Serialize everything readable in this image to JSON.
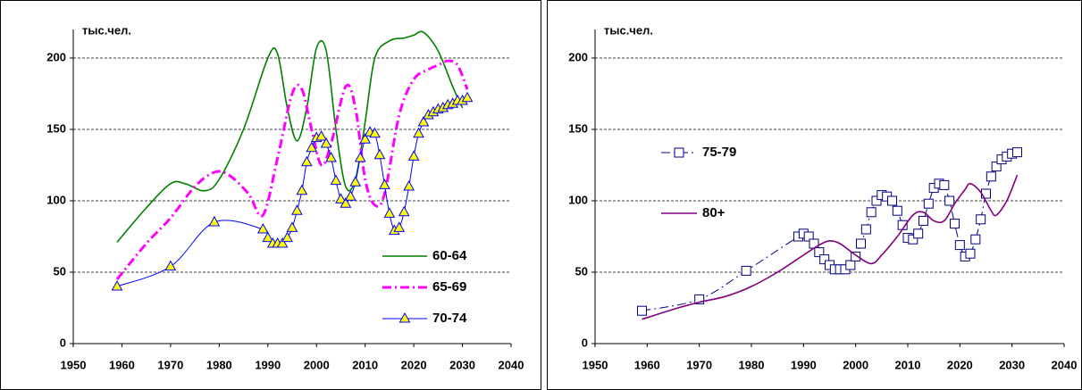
{
  "chart_data": [
    {
      "type": "line",
      "ylabel": "тыс.чел.",
      "xlim": [
        1950,
        2040
      ],
      "ylim": [
        0,
        220
      ],
      "xticks": [
        1950,
        1960,
        1970,
        1980,
        1990,
        2000,
        2010,
        2020,
        2030,
        2040
      ],
      "yticks": [
        0,
        50,
        100,
        150,
        200
      ],
      "grid": true,
      "legend_position": "lower right",
      "series": [
        {
          "name": "60-64",
          "color": "#008000",
          "style": "solid",
          "marker": "none",
          "x": [
            1959,
            1965,
            1970,
            1973,
            1977,
            1980,
            1985,
            1990,
            1992,
            1994,
            1996,
            1998,
            2000,
            2002,
            2004,
            2006,
            2008,
            2010,
            2012,
            2015,
            2018,
            2020,
            2022,
            2025,
            2028,
            2030
          ],
          "values": [
            71,
            95,
            112,
            112,
            107,
            115,
            150,
            200,
            203,
            165,
            142,
            165,
            207,
            205,
            150,
            110,
            115,
            155,
            200,
            212,
            214,
            216,
            218,
            205,
            180,
            165
          ]
        },
        {
          "name": "65-69",
          "color": "#ff00ff",
          "style": "dashdot",
          "marker": "none",
          "x": [
            1959,
            1965,
            1970,
            1975,
            1979,
            1982,
            1986,
            1989,
            1992,
            1995,
            1997,
            1999,
            2001,
            2003,
            2006,
            2008,
            2010,
            2012,
            2014,
            2017,
            2020,
            2023,
            2025,
            2027,
            2029,
            2031
          ],
          "values": [
            45,
            70,
            88,
            110,
            120,
            118,
            105,
            90,
            130,
            175,
            178,
            150,
            125,
            140,
            180,
            165,
            115,
            97,
            105,
            160,
            185,
            192,
            195,
            198,
            195,
            178
          ]
        },
        {
          "name": "70-74",
          "color": "#0000ff",
          "style": "solid",
          "marker": "triangle",
          "x": [
            1959,
            1970,
            1979,
            1989,
            1990,
            1991,
            1992,
            1993,
            1994,
            1995,
            1996,
            1997,
            1998,
            1999,
            2000,
            2001,
            2002,
            2003,
            2004,
            2005,
            2006,
            2007,
            2008,
            2009,
            2010,
            2011,
            2012,
            2013,
            2014,
            2015,
            2016,
            2017,
            2018,
            2019,
            2020,
            2021,
            2022,
            2023,
            2024,
            2025,
            2026,
            2027,
            2028,
            2029,
            2030,
            2031
          ],
          "values": [
            40,
            54,
            85,
            80,
            74,
            70,
            70,
            70,
            74,
            81,
            93,
            107,
            127,
            137,
            144,
            145,
            140,
            130,
            114,
            101,
            98,
            103,
            113,
            130,
            143,
            148,
            147,
            132,
            111,
            91,
            79,
            81,
            92,
            110,
            131,
            147,
            155,
            160,
            162,
            164,
            165,
            167,
            168,
            170,
            170,
            172
          ]
        }
      ]
    },
    {
      "type": "line",
      "ylabel": "тыс.чел.",
      "xlim": [
        1950,
        2040
      ],
      "ylim": [
        0,
        220
      ],
      "xticks": [
        1950,
        1960,
        1970,
        1980,
        1990,
        2000,
        2010,
        2020,
        2030,
        2040
      ],
      "yticks": [
        0,
        50,
        100,
        150,
        200
      ],
      "grid": true,
      "legend_position": "center left",
      "series": [
        {
          "name": "75-79",
          "color": "#000080",
          "style": "dashdot",
          "marker": "square",
          "x": [
            1959,
            1970,
            1979,
            1989,
            1990,
            1991,
            1992,
            1993,
            1994,
            1995,
            1996,
            1997,
            1998,
            1999,
            2000,
            2001,
            2002,
            2003,
            2004,
            2005,
            2006,
            2007,
            2008,
            2009,
            2010,
            2011,
            2012,
            2013,
            2014,
            2015,
            2016,
            2017,
            2018,
            2019,
            2020,
            2021,
            2022,
            2023,
            2024,
            2025,
            2026,
            2027,
            2028,
            2029,
            2030,
            2031
          ],
          "values": [
            23,
            31,
            51,
            75,
            77,
            75,
            70,
            64,
            59,
            55,
            52,
            52,
            52,
            55,
            61,
            70,
            80,
            92,
            100,
            104,
            103,
            100,
            93,
            83,
            74,
            73,
            77,
            86,
            98,
            109,
            112,
            111,
            100,
            84,
            69,
            61,
            63,
            73,
            87,
            105,
            117,
            124,
            129,
            131,
            133,
            134
          ]
        },
        {
          "name": "80+",
          "color": "#800080",
          "style": "solid",
          "marker": "none",
          "x": [
            1959,
            1965,
            1970,
            1975,
            1980,
            1985,
            1990,
            1993,
            1995,
            1997,
            2000,
            2003,
            2005,
            2008,
            2011,
            2013,
            2015,
            2017,
            2019,
            2021,
            2022,
            2024,
            2026,
            2027,
            2029,
            2031
          ],
          "values": [
            17,
            24,
            29,
            33,
            40,
            50,
            62,
            69,
            72,
            70,
            62,
            56,
            62,
            75,
            90,
            92,
            86,
            86,
            98,
            108,
            112,
            106,
            93,
            90,
            100,
            118
          ]
        }
      ]
    }
  ]
}
